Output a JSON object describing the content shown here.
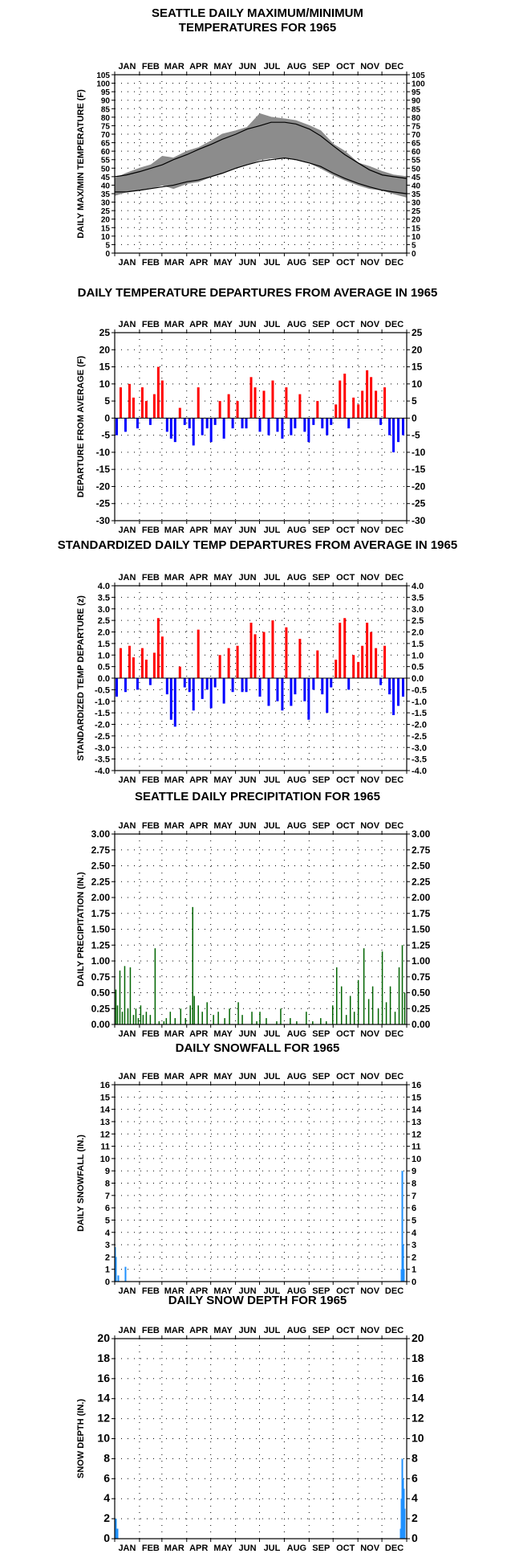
{
  "months": [
    "JAN",
    "FEB",
    "MAR",
    "APR",
    "MAY",
    "JUN",
    "JUL",
    "AUG",
    "SEP",
    "OCT",
    "NOV",
    "DEC"
  ],
  "colors": {
    "record": "#8c8c8c",
    "normal": "#000000",
    "above": "#ff0000",
    "below": "#0000ff",
    "precip": "#006400",
    "snow": "#1e90ff",
    "grid": "#000000"
  },
  "chart_data": [
    {
      "id": "temps",
      "type": "area",
      "title_line1": "SEATTLE DAILY MAXIMUM/MINIMUM",
      "title_line2": "TEMPERATURES FOR 1965",
      "ylabel": "DAILY MAX/MIN TEMPERATURE (F)",
      "ylim": [
        0,
        105
      ],
      "yticks": [
        0,
        5,
        10,
        15,
        20,
        25,
        30,
        35,
        40,
        45,
        50,
        55,
        60,
        65,
        70,
        75,
        80,
        85,
        90,
        95,
        100,
        105
      ],
      "grid": true,
      "x_day_of_year": [
        1,
        15,
        32,
        46,
        60,
        74,
        91,
        105,
        121,
        135,
        152,
        166,
        182,
        196,
        213,
        227,
        244,
        258,
        274,
        288,
        305,
        319,
        335,
        349,
        365
      ],
      "observed_high": [
        44,
        47,
        50,
        52,
        57,
        56,
        60,
        62,
        66,
        70,
        72,
        74,
        82,
        80,
        79,
        78,
        75,
        72,
        64,
        60,
        53,
        51,
        48,
        46,
        45
      ],
      "observed_low": [
        34,
        36,
        37,
        38,
        40,
        38,
        41,
        42,
        45,
        47,
        50,
        52,
        55,
        56,
        56,
        55,
        53,
        50,
        46,
        43,
        40,
        38,
        37,
        35,
        33
      ],
      "normal_high": [
        45,
        46,
        48,
        50,
        52,
        55,
        58,
        61,
        64,
        67,
        70,
        73,
        75,
        77,
        77,
        76,
        73,
        69,
        63,
        58,
        53,
        49,
        46,
        45,
        44
      ],
      "normal_low": [
        36,
        36,
        37,
        38,
        39,
        40,
        42,
        43,
        45,
        47,
        50,
        52,
        54,
        55,
        56,
        55,
        53,
        51,
        47,
        44,
        41,
        39,
        37,
        36,
        35
      ]
    },
    {
      "id": "departures",
      "type": "bar",
      "title": "DAILY TEMPERATURE DEPARTURES FROM AVERAGE IN 1965",
      "ylabel": "DEPARTURE FROM AVERAGE (F)",
      "ylim": [
        -30,
        25
      ],
      "yticks": [
        -30,
        -25,
        -20,
        -15,
        -10,
        -5,
        0,
        5,
        10,
        15,
        20,
        25
      ],
      "grid": true,
      "x_day_of_year": [
        3,
        8,
        14,
        19,
        24,
        29,
        35,
        40,
        45,
        50,
        55,
        60,
        66,
        71,
        76,
        82,
        88,
        94,
        99,
        105,
        110,
        116,
        121,
        126,
        132,
        137,
        143,
        148,
        154,
        160,
        165,
        171,
        176,
        182,
        187,
        193,
        198,
        204,
        210,
        215,
        221,
        226,
        232,
        238,
        243,
        249,
        254,
        260,
        266,
        271,
        277,
        282,
        288,
        293,
        299,
        305,
        310,
        316,
        321,
        327,
        333,
        338,
        344,
        349,
        355,
        361
      ],
      "values": [
        -5,
        9,
        -4,
        10,
        6,
        -3,
        9,
        5,
        -2,
        7,
        15,
        11,
        -4,
        -6,
        -7,
        3,
        -2,
        -3,
        -8,
        9,
        -5,
        -3,
        -7,
        -2,
        5,
        -6,
        7,
        -3,
        5,
        -3,
        -3,
        12,
        9,
        -4,
        8,
        -5,
        11,
        -4,
        -6,
        9,
        -5,
        -3,
        7,
        -4,
        -7,
        -2,
        5,
        -3,
        -5,
        -2,
        4,
        11,
        13,
        -3,
        6,
        4,
        8,
        14,
        12,
        8,
        -2,
        9,
        -5,
        -10,
        -7,
        -5
      ]
    },
    {
      "id": "standardized",
      "type": "bar",
      "title": "STANDARDIZED DAILY TEMP DEPARTURES FROM AVERAGE IN 1965",
      "ylabel": "STANDARDIZED TEMP DEPARTURE (z)",
      "ylim": [
        -4.0,
        4.0
      ],
      "yticks": [
        -4.0,
        -3.5,
        -3.0,
        -2.5,
        -2.0,
        -1.5,
        -1.0,
        -0.5,
        0.0,
        0.5,
        1.0,
        1.5,
        2.0,
        2.5,
        3.0,
        3.5,
        4.0
      ],
      "grid": true,
      "x_day_of_year": [
        3,
        8,
        14,
        19,
        24,
        29,
        35,
        40,
        45,
        50,
        55,
        60,
        66,
        71,
        76,
        82,
        88,
        94,
        99,
        105,
        110,
        116,
        121,
        126,
        132,
        137,
        143,
        148,
        154,
        160,
        165,
        171,
        176,
        182,
        187,
        193,
        198,
        204,
        210,
        215,
        221,
        226,
        232,
        238,
        243,
        249,
        254,
        260,
        266,
        271,
        277,
        282,
        288,
        293,
        299,
        305,
        310,
        316,
        321,
        327,
        333,
        338,
        344,
        349,
        355,
        361
      ],
      "values": [
        -0.8,
        1.3,
        -0.6,
        1.4,
        0.9,
        -0.5,
        1.3,
        0.8,
        -0.3,
        1.1,
        2.6,
        1.8,
        -0.7,
        -1.8,
        -2.1,
        0.5,
        -0.4,
        -0.6,
        -1.4,
        2.1,
        -0.9,
        -0.5,
        -1.3,
        -0.4,
        1.0,
        -1.1,
        1.3,
        -0.6,
        1.4,
        -0.6,
        -0.6,
        2.4,
        1.9,
        -0.8,
        2.0,
        -1.2,
        2.5,
        -1.0,
        -1.4,
        2.2,
        -1.2,
        -0.7,
        1.7,
        -1.0,
        -1.8,
        -0.5,
        1.2,
        -0.7,
        -1.5,
        -0.4,
        0.8,
        2.4,
        2.6,
        -0.5,
        1.0,
        0.7,
        1.4,
        2.4,
        2.0,
        1.3,
        -0.3,
        1.4,
        -0.7,
        -1.6,
        -1.2,
        -0.8
      ]
    },
    {
      "id": "precip",
      "type": "bar",
      "title": "SEATTLE DAILY PRECIPITATION FOR 1965",
      "ylabel": "DAILY PRECIPITATION (IN.)",
      "ylim": [
        0,
        3.0
      ],
      "yticks": [
        0.0,
        0.25,
        0.5,
        0.75,
        1.0,
        1.25,
        1.5,
        1.75,
        2.0,
        2.25,
        2.5,
        2.75,
        3.0
      ],
      "grid": true,
      "x_day_of_year": [
        2,
        4,
        7,
        10,
        13,
        17,
        20,
        24,
        27,
        30,
        33,
        36,
        40,
        45,
        51,
        56,
        62,
        65,
        70,
        76,
        83,
        89,
        95,
        98,
        100,
        105,
        110,
        116,
        124,
        130,
        138,
        144,
        155,
        160,
        172,
        178,
        182,
        190,
        203,
        208,
        220,
        228,
        240,
        248,
        258,
        265,
        273,
        278,
        284,
        290,
        295,
        300,
        305,
        312,
        318,
        323,
        330,
        335,
        340,
        345,
        351,
        356,
        360,
        363
      ],
      "values": [
        0.55,
        0.3,
        0.85,
        0.2,
        0.92,
        0.25,
        0.9,
        0.15,
        0.25,
        0.1,
        0.3,
        0.15,
        0.2,
        0.15,
        1.2,
        0.05,
        0.05,
        0.1,
        0.2,
        0.1,
        0.25,
        0.1,
        0.3,
        1.85,
        0.45,
        0.3,
        0.2,
        0.35,
        0.15,
        0.2,
        0.1,
        0.25,
        0.35,
        0.15,
        0.2,
        0.05,
        0.2,
        0.1,
        0.05,
        0.25,
        0.1,
        0.05,
        0.2,
        0.05,
        0.1,
        0.05,
        0.3,
        0.9,
        0.6,
        0.15,
        0.45,
        0.2,
        0.7,
        1.2,
        0.4,
        0.6,
        0.25,
        1.15,
        0.35,
        0.6,
        0.2,
        0.9,
        1.25,
        0.5
      ]
    },
    {
      "id": "snowfall",
      "type": "bar",
      "title": "DAILY SNOWFALL FOR 1965",
      "ylabel": "DAILY SNOWFALL (IN.)",
      "ylim": [
        0,
        16
      ],
      "yticks": [
        0,
        1,
        2,
        3,
        4,
        5,
        6,
        7,
        8,
        9,
        10,
        11,
        12,
        13,
        14,
        15,
        16
      ],
      "grid": true,
      "x_day_of_year": [
        1,
        2,
        5,
        14,
        359,
        360,
        361,
        362
      ],
      "values": [
        2.8,
        2.0,
        0.5,
        1.2,
        1.0,
        9.0,
        3.0,
        1.0
      ]
    },
    {
      "id": "snowdepth",
      "type": "bar",
      "title": "DAILY SNOW DEPTH FOR 1965",
      "ylabel": "SNOW DEPTH (IN.)",
      "ylim": [
        0,
        20
      ],
      "yticks": [
        0,
        2,
        4,
        6,
        8,
        10,
        12,
        14,
        16,
        18,
        20
      ],
      "grid": true,
      "x_day_of_year": [
        1,
        2,
        3,
        4,
        358,
        359,
        360,
        361,
        362,
        363
      ],
      "values": [
        2,
        2,
        1,
        1,
        1,
        4,
        8,
        6,
        5,
        3
      ]
    }
  ]
}
